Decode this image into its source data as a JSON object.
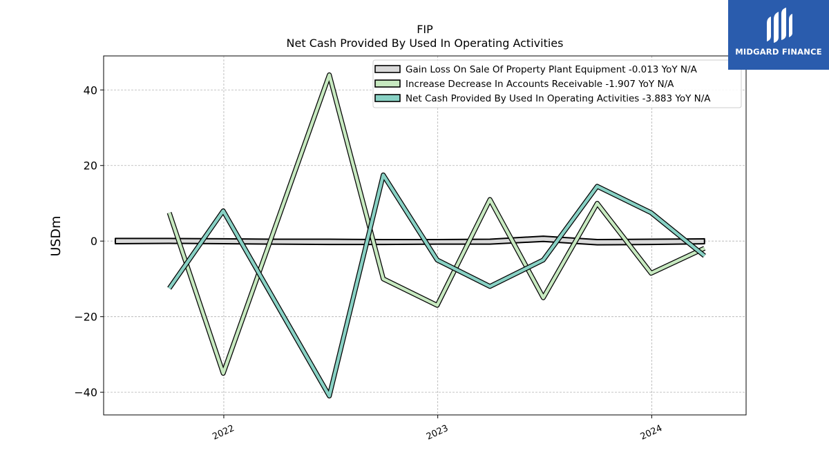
{
  "chart_data": {
    "type": "line",
    "title": "FIP",
    "subtitle": "Net Cash Provided By Used In Operating Activities",
    "ylabel": "USDm",
    "xlabel": "",
    "ylim": [
      -46,
      49
    ],
    "xlim": [
      "2021-06-10",
      "2024-06-10"
    ],
    "yticks": [
      40,
      20,
      0,
      -20,
      -40
    ],
    "ytick_labels": [
      "40",
      "20",
      "0",
      "−20",
      "−40"
    ],
    "xticks": [
      "2022-01-01",
      "2023-01-01",
      "2024-01-01"
    ],
    "xtick_labels": [
      "2022",
      "2023",
      "2024"
    ],
    "grid": true,
    "legend_position": "top-right",
    "series": [
      {
        "name": "Gain Loss On Sale Of Property Plant Equipment  -0.013 YoY N/A",
        "color": "#d9d9d9",
        "style": "band",
        "x": [
          "2021-06-30",
          "2021-09-30",
          "2021-12-31",
          "2022-03-31",
          "2022-06-30",
          "2022-09-30",
          "2022-12-31",
          "2023-03-31",
          "2023-06-30",
          "2023-09-30",
          "2023-12-31",
          "2024-03-31"
        ],
        "upper": [
          0.7,
          0.7,
          0.6,
          0.5,
          0.5,
          0.4,
          0.4,
          0.5,
          1.3,
          0.4,
          0.5,
          0.6
        ],
        "lower": [
          -0.7,
          -0.6,
          -0.7,
          -0.8,
          -0.9,
          -0.9,
          -0.8,
          -0.8,
          -0.1,
          -1.0,
          -0.9,
          -0.7
        ]
      },
      {
        "name": "Increase Decrease In Accounts Receivable  -1.907 YoY N/A",
        "color": "#c7e9c0",
        "style": "line",
        "x": [
          "2021-09-30",
          "2021-12-31",
          "2022-06-30",
          "2022-09-30",
          "2022-12-31",
          "2023-03-31",
          "2023-06-30",
          "2023-09-30",
          "2023-12-31",
          "2024-03-31"
        ],
        "values": [
          7.5,
          -35.0,
          44.0,
          -10.0,
          -17.0,
          11.0,
          -15.0,
          10.0,
          -8.5,
          -1.9
        ]
      },
      {
        "name": "Net Cash Provided By Used In Operating Activities  -3.883 YoY N/A",
        "color": "#88d1c4",
        "style": "line",
        "x": [
          "2021-09-30",
          "2021-12-31",
          "2022-06-30",
          "2022-09-30",
          "2022-12-31",
          "2023-03-31",
          "2023-06-30",
          "2023-09-30",
          "2023-12-31",
          "2024-03-31"
        ],
        "values": [
          -12.5,
          8.0,
          -41.0,
          17.5,
          -5.0,
          -12.0,
          -5.0,
          14.5,
          7.5,
          -3.9
        ]
      }
    ]
  },
  "logo": {
    "text": "MIDGARD FINANCE",
    "background": "#2a5cad"
  }
}
